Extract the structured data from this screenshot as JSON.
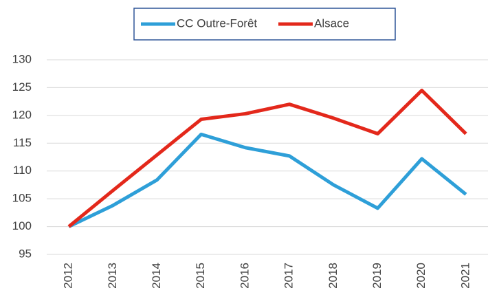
{
  "chart_data": {
    "type": "line",
    "categories": [
      "2012",
      "2013",
      "2014",
      "2015",
      "2016",
      "2017",
      "2018",
      "2019",
      "2020",
      "2021"
    ],
    "series": [
      {
        "name": "CC Outre-Forêt",
        "color": "#2e9fd8",
        "values": [
          100,
          103.8,
          108.4,
          116.6,
          114.2,
          112.7,
          107.5,
          103.3,
          112.2,
          105.8
        ]
      },
      {
        "name": "Alsace",
        "color": "#e3281b",
        "values": [
          100,
          106.5,
          112.9,
          119.3,
          120.3,
          122.0,
          119.5,
          116.7,
          124.5,
          116.7
        ]
      }
    ],
    "ylim": [
      95,
      130
    ],
    "yticks": [
      95,
      100,
      105,
      110,
      115,
      120,
      125,
      130
    ],
    "grid": true,
    "legend": "top"
  }
}
